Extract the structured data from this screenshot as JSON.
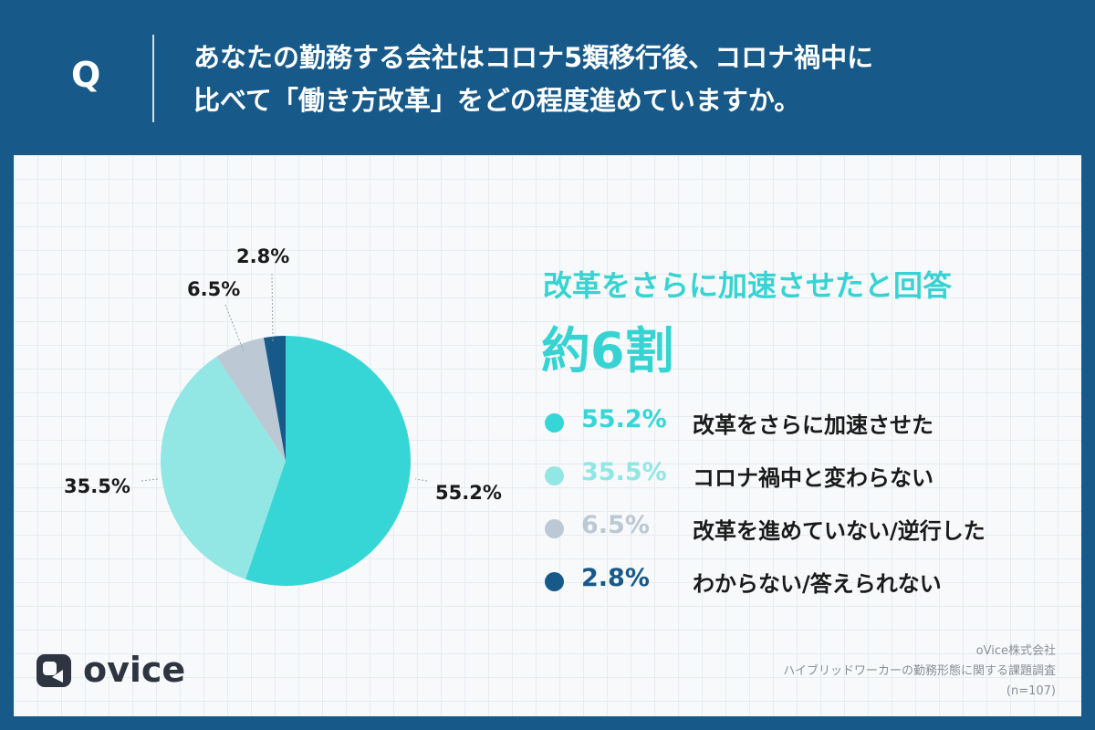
{
  "header": {
    "q_mark": "Q",
    "question_line1": "あなたの勤務する会社はコロナ5類移行後、コロナ禍中に",
    "question_line2": "比べて「働き方改革」をどの程度進めていますか。"
  },
  "headline": {
    "line1": "改革をさらに加速させたと回答",
    "line2": "約6割"
  },
  "chart_data": {
    "type": "pie",
    "title": "",
    "slices": [
      {
        "label": "改革をさらに加速させた",
        "value": 55.2,
        "display": "55.2%",
        "color": "#37d6d6"
      },
      {
        "label": "コロナ禍中と変わらない",
        "value": 35.5,
        "display": "35.5%",
        "color": "#92e6e4"
      },
      {
        "label": "改革を進めていない/逆行した",
        "value": 6.5,
        "display": "6.5%",
        "color": "#bcc8d3"
      },
      {
        "label": "わからない/答えられない",
        "value": 2.8,
        "display": "2.8%",
        "color": "#175a8a"
      }
    ],
    "legend_placement": "right",
    "start": "12 o'clock",
    "direction": "clockwise"
  },
  "colors": {
    "background": "#175a8a",
    "accent": "#37d3d3"
  },
  "brand": {
    "logo_icon": "ovice-logo-icon",
    "logo_text": "ovice"
  },
  "source": {
    "company": "oVice株式会社",
    "survey": "ハイブリッドワーカーの勤務形態に関する課題調査",
    "sample": "(n=107)"
  }
}
